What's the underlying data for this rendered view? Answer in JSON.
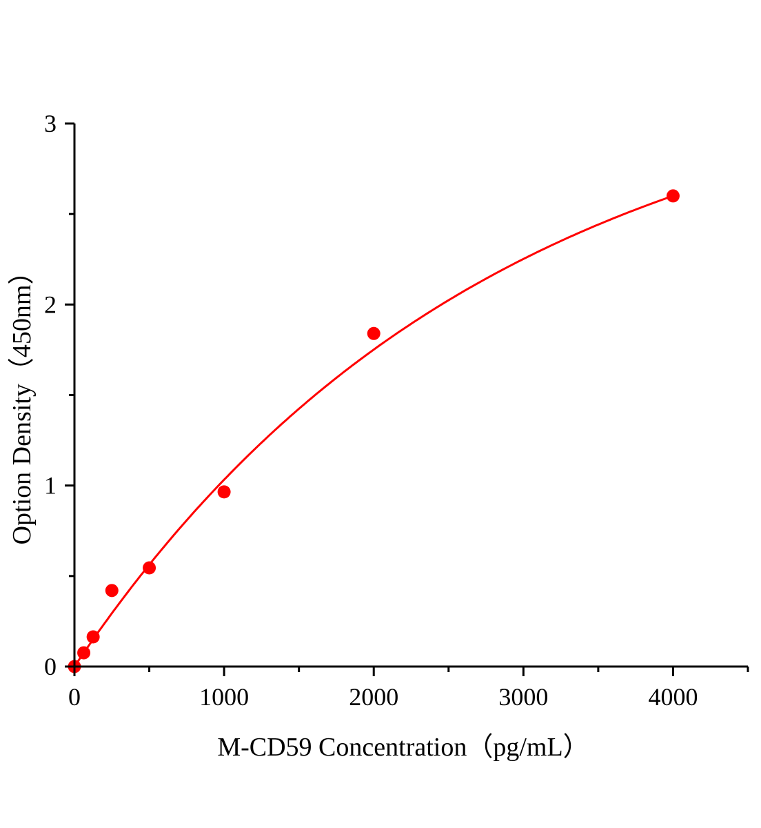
{
  "chart_data": {
    "type": "scatter",
    "title": "",
    "xlabel": "M-CD59 Concentration（pg/mL）",
    "ylabel": "Option Density（450nm）",
    "xlim": [
      0,
      4500
    ],
    "ylim": [
      0,
      3
    ],
    "x_ticks": [
      0,
      1000,
      2000,
      3000,
      4000
    ],
    "x_tick_labels": [
      "0",
      "1000",
      "2000",
      "3000",
      "4000"
    ],
    "x_minor_step": 500,
    "y_ticks": [
      0,
      1,
      2,
      3
    ],
    "y_tick_labels": [
      "0",
      "1",
      "2",
      "3"
    ],
    "y_minor_step": 0.5,
    "grid": false,
    "color": "#ff0000",
    "series": [
      {
        "x": [
          0,
          62.5,
          125,
          250,
          500,
          1000,
          2000,
          4000
        ],
        "y": [
          0.0,
          0.076,
          0.164,
          0.42,
          0.545,
          0.965,
          1.84,
          2.6
        ],
        "fit_curve": true
      }
    ]
  }
}
